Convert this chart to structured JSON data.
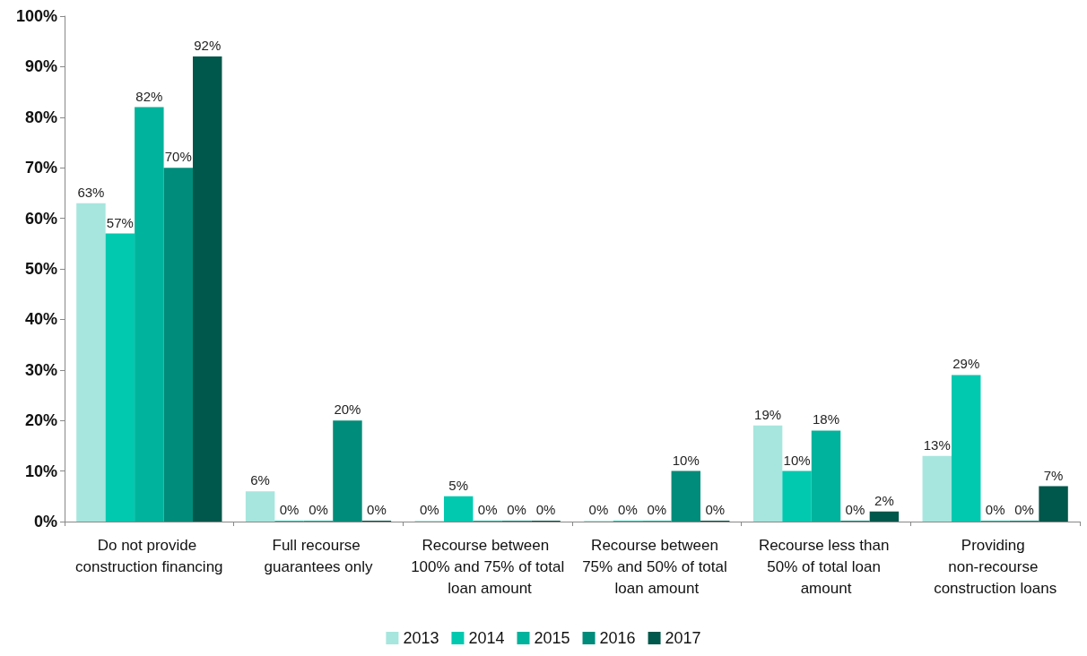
{
  "chart_data": {
    "type": "bar",
    "categories": [
      "Do not provide construction financing",
      "Full recourse guarantees only",
      "Recourse between 100% and 75% of total loan amount",
      "Recourse between 75% and 50% of total loan amount",
      "Recourse less than 50% of total loan amount",
      "Providing non-recourse construction loans"
    ],
    "series": [
      {
        "name": "2013",
        "color": "#a6e6de",
        "values": [
          63,
          6,
          0,
          0,
          19,
          13
        ],
        "value_labels": [
          "63%",
          "6%",
          "0%",
          "0%",
          "19%",
          "13%"
        ]
      },
      {
        "name": "2014",
        "color": "#00c9b0",
        "values": [
          57,
          0,
          5,
          0,
          10,
          29
        ],
        "value_labels": [
          "57%",
          "0%",
          "5%",
          "0%",
          "10%",
          "29%"
        ]
      },
      {
        "name": "2015",
        "color": "#00b39c",
        "values": [
          82,
          0,
          0,
          0,
          18,
          0
        ],
        "value_labels": [
          "82%",
          "0%",
          "0%",
          "0%",
          "18%",
          "0%"
        ]
      },
      {
        "name": "2016",
        "color": "#008c7a",
        "values": [
          70,
          20,
          0,
          10,
          0,
          0
        ],
        "value_labels": [
          "70%",
          "20%",
          "0%",
          "10%",
          "0%",
          "0%"
        ]
      },
      {
        "name": "2017",
        "color": "#00574b",
        "values": [
          92,
          0,
          0,
          0,
          2,
          7
        ],
        "value_labels": [
          "92%",
          "0%",
          "0%",
          "0%",
          "2%",
          "7%"
        ]
      }
    ],
    "ylim": [
      0,
      100
    ],
    "yticks": [
      {
        "value": 0,
        "label": "0%"
      },
      {
        "value": 10,
        "label": "10%"
      },
      {
        "value": 20,
        "label": "20%"
      },
      {
        "value": 30,
        "label": "30%"
      },
      {
        "value": 40,
        "label": "40%"
      },
      {
        "value": 50,
        "label": "50%"
      },
      {
        "value": 60,
        "label": "60%"
      },
      {
        "value": 70,
        "label": "70%"
      },
      {
        "value": 80,
        "label": "80%"
      },
      {
        "value": 90,
        "label": "90%"
      },
      {
        "value": 100,
        "label": "100%"
      }
    ],
    "grid": false,
    "legend": "bottom"
  }
}
